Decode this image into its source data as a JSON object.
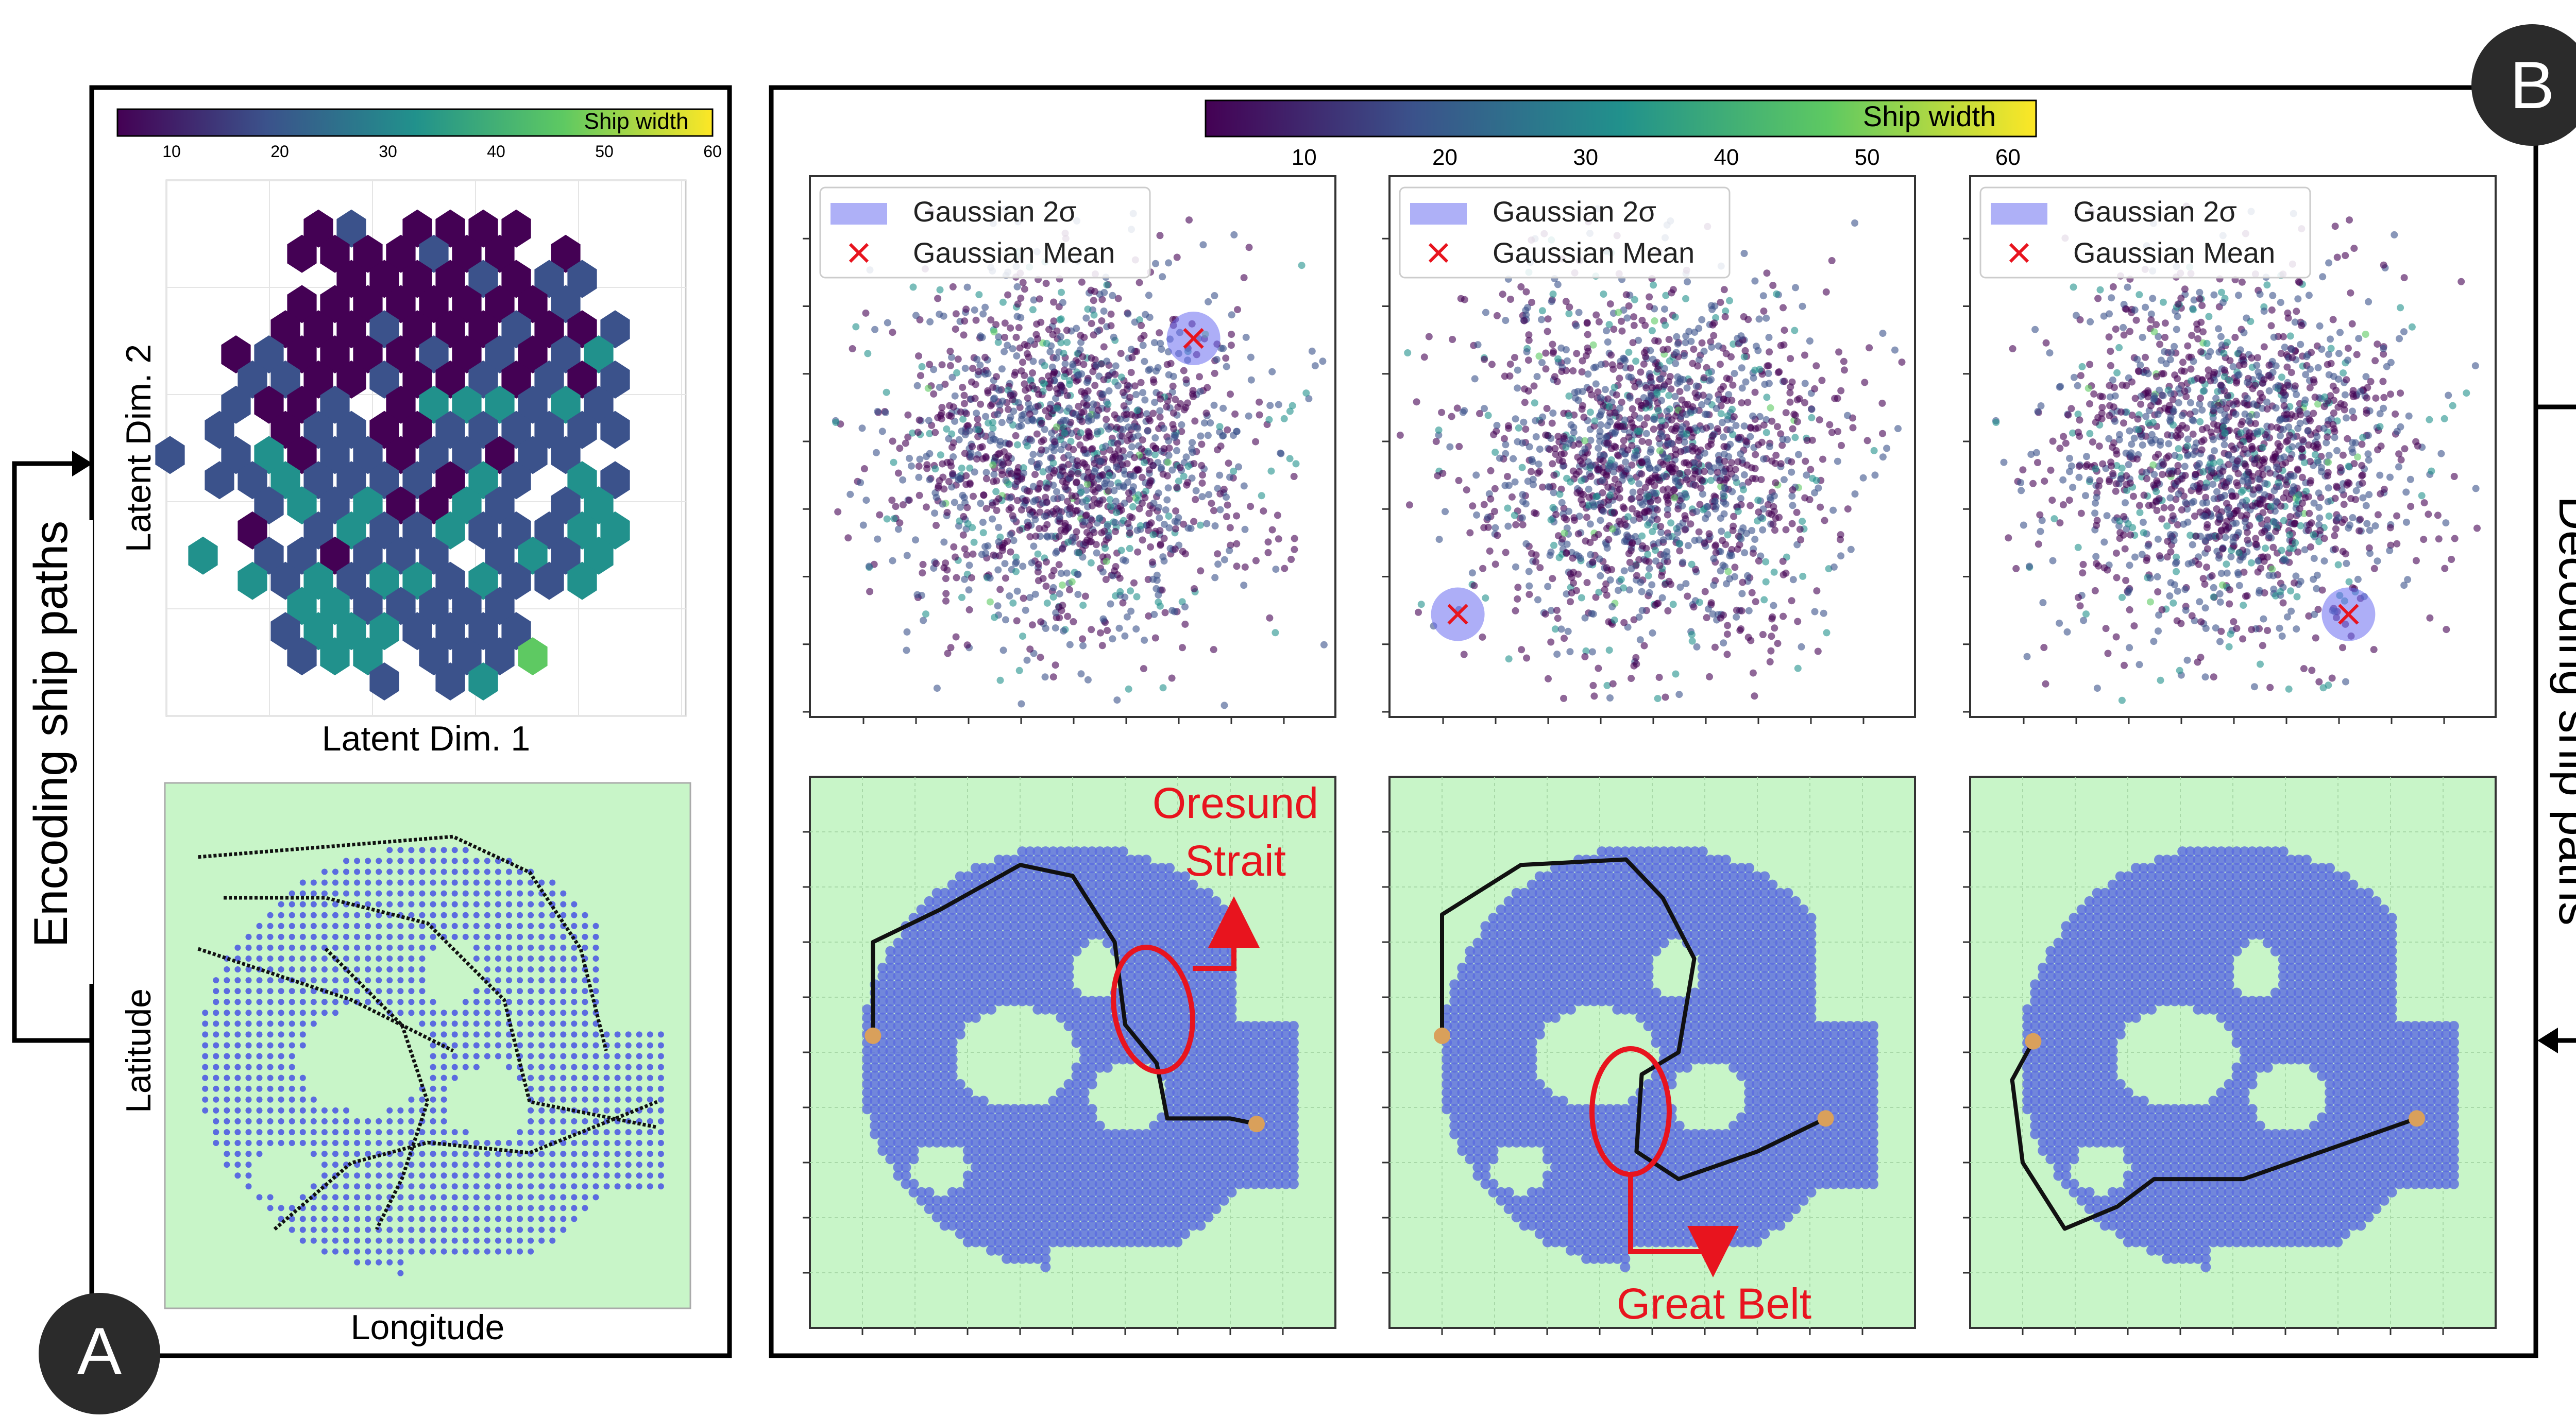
{
  "panel_a": {
    "badge": "A",
    "colorbar": {
      "label": "Ship width",
      "ticks": [
        "10",
        "20",
        "30",
        "40",
        "50",
        "60"
      ]
    },
    "hexbin": {
      "xlabel": "Latent Dim. 1",
      "ylabel": "Latent Dim. 2"
    },
    "map": {
      "xlabel": "Longitude",
      "ylabel": "Latitude"
    }
  },
  "panel_b": {
    "badge": "B",
    "colorbar": {
      "label": "Ship width",
      "ticks": [
        "10",
        "20",
        "30",
        "40",
        "50",
        "60"
      ]
    },
    "legend": {
      "gaussian_2sigma": "Gaussian 2σ",
      "gaussian_mean": "Gaussian Mean"
    },
    "annotations": {
      "oresund": [
        "Oresund",
        "Strait"
      ],
      "great_belt": "Great Belt"
    }
  },
  "side_labels": {
    "encoding": "Encoding ship paths",
    "decoding": "Decoding ship paths"
  },
  "colors": {
    "sea": "#5b6be0",
    "land": "#c8f5c8",
    "annotation": "#e8141e",
    "badge": "#2b2b2b",
    "gaussian_circle": "#6a6cf0",
    "viridis": [
      "#440154",
      "#3b528b",
      "#21918c",
      "#5ec962",
      "#fde725"
    ]
  }
}
